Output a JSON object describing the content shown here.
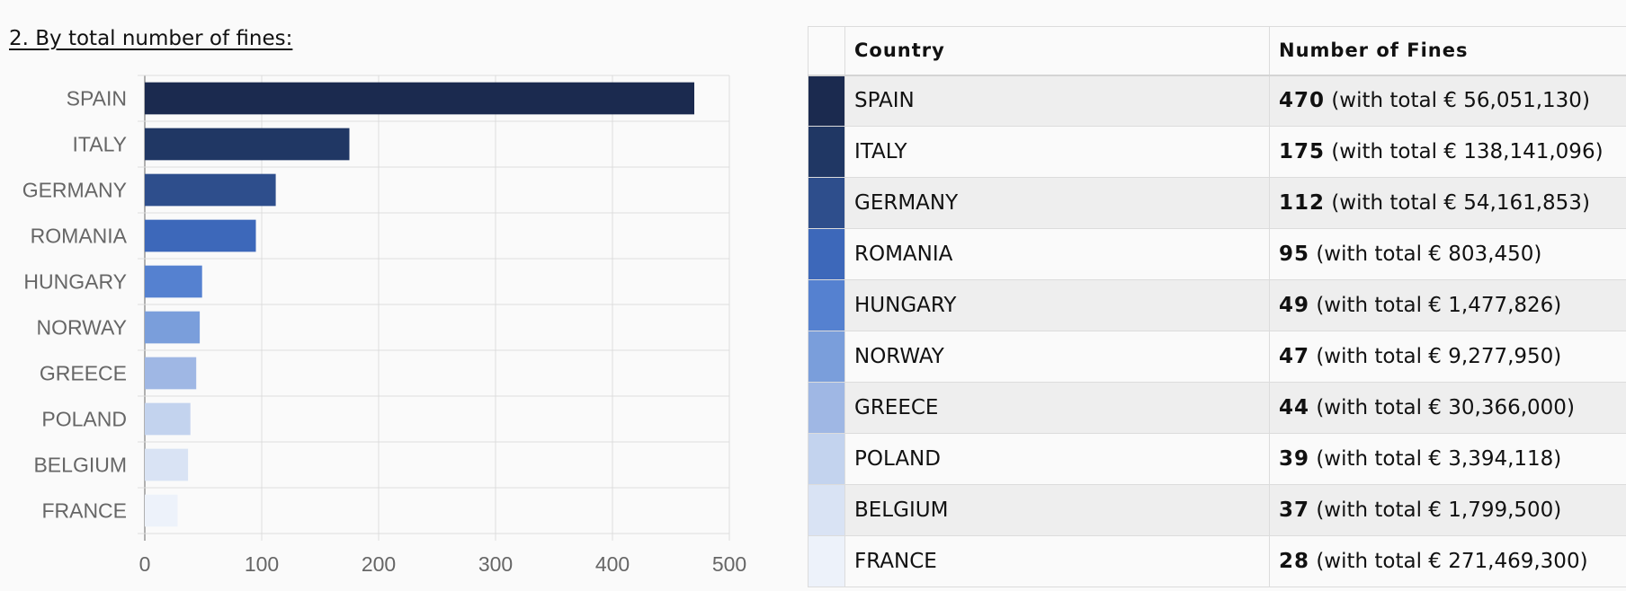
{
  "heading": "2. By total number of fines:",
  "chart_data": {
    "type": "bar",
    "orientation": "horizontal",
    "categories": [
      "SPAIN",
      "ITALY",
      "GERMANY",
      "ROMANIA",
      "HUNGARY",
      "NORWAY",
      "GREECE",
      "POLAND",
      "BELGIUM",
      "FRANCE"
    ],
    "values": [
      470,
      175,
      112,
      95,
      49,
      47,
      44,
      39,
      37,
      28
    ],
    "colors": [
      "#1b2a4f",
      "#203764",
      "#2e4e8c",
      "#3d68ba",
      "#5581d0",
      "#7a9edb",
      "#9fb7e4",
      "#c3d3ee",
      "#d9e3f4",
      "#edf2fa"
    ],
    "xlim": [
      0,
      500
    ],
    "xticks": [
      0,
      100,
      200,
      300,
      400,
      500
    ],
    "grid": true
  },
  "table": {
    "headers": {
      "country": "Country",
      "fines": "Number of Fines"
    },
    "rows": [
      {
        "country": "SPAIN",
        "count": "470",
        "detail": "(with total € 56,051,130)",
        "color": "#1b2a4f"
      },
      {
        "country": "ITALY",
        "count": "175",
        "detail": "(with total € 138,141,096)",
        "color": "#203764"
      },
      {
        "country": "GERMANY",
        "count": "112",
        "detail": "(with total € 54,161,853)",
        "color": "#2e4e8c"
      },
      {
        "country": "ROMANIA",
        "count": "95",
        "detail": "(with total € 803,450)",
        "color": "#3d68ba"
      },
      {
        "country": "HUNGARY",
        "count": "49",
        "detail": "(with total € 1,477,826)",
        "color": "#5581d0"
      },
      {
        "country": "NORWAY",
        "count": "47",
        "detail": "(with total € 9,277,950)",
        "color": "#7a9edb"
      },
      {
        "country": "GREECE",
        "count": "44",
        "detail": "(with total € 30,366,000)",
        "color": "#9fb7e4"
      },
      {
        "country": "POLAND",
        "count": "39",
        "detail": "(with total € 3,394,118)",
        "color": "#c3d3ee"
      },
      {
        "country": "BELGIUM",
        "count": "37",
        "detail": "(with total € 1,799,500)",
        "color": "#d9e3f4"
      },
      {
        "country": "FRANCE",
        "count": "28",
        "detail": "(with total € 271,469,300)",
        "color": "#edf2fa"
      }
    ]
  }
}
